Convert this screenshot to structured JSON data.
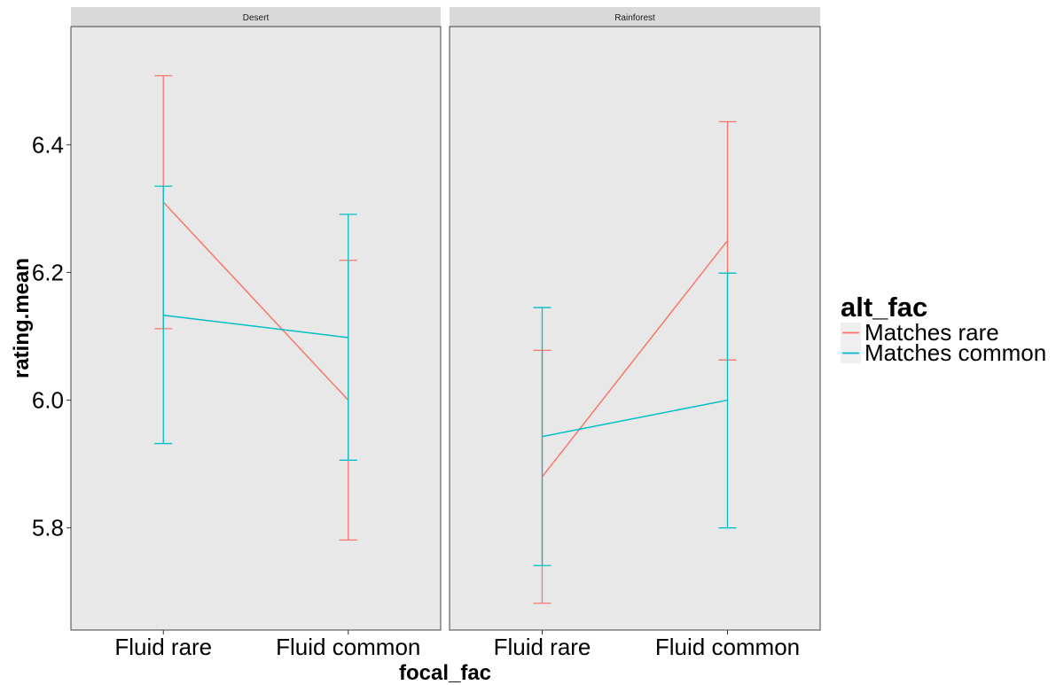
{
  "chart_data": {
    "type": "line",
    "xlabel": "focal_fac",
    "ylabel": "rating.mean",
    "categories": [
      "Fluid rare",
      "Fluid common"
    ],
    "ylim": [
      5.64,
      6.585
    ],
    "yticks": [
      5.8,
      6.0,
      6.2,
      6.4
    ],
    "ytick_labels": [
      "5.8",
      "6.0",
      "6.2",
      "6.4"
    ],
    "grid": false,
    "legend": {
      "title": "alt_fac",
      "position": "right"
    },
    "colors": {
      "Matches rare": "#F8766D",
      "Matches common": "#00BFC4"
    },
    "panels": [
      {
        "name": "Desert",
        "series": [
          {
            "name": "Matches rare",
            "values": [
              6.31,
              6.0
            ],
            "lower": [
              6.112,
              5.781
            ],
            "upper": [
              6.508,
              6.219
            ]
          },
          {
            "name": "Matches common",
            "values": [
              6.133,
              6.098
            ],
            "lower": [
              5.932,
              5.906
            ],
            "upper": [
              6.335,
              6.291
            ]
          }
        ]
      },
      {
        "name": "Rainforest",
        "series": [
          {
            "name": "Matches rare",
            "values": [
              5.88,
              6.25
            ],
            "lower": [
              5.682,
              6.063
            ],
            "upper": [
              6.078,
              6.436
            ]
          },
          {
            "name": "Matches common",
            "values": [
              5.943,
              6.0
            ],
            "lower": [
              5.741,
              5.8
            ],
            "upper": [
              6.145,
              6.199
            ]
          }
        ]
      }
    ]
  }
}
